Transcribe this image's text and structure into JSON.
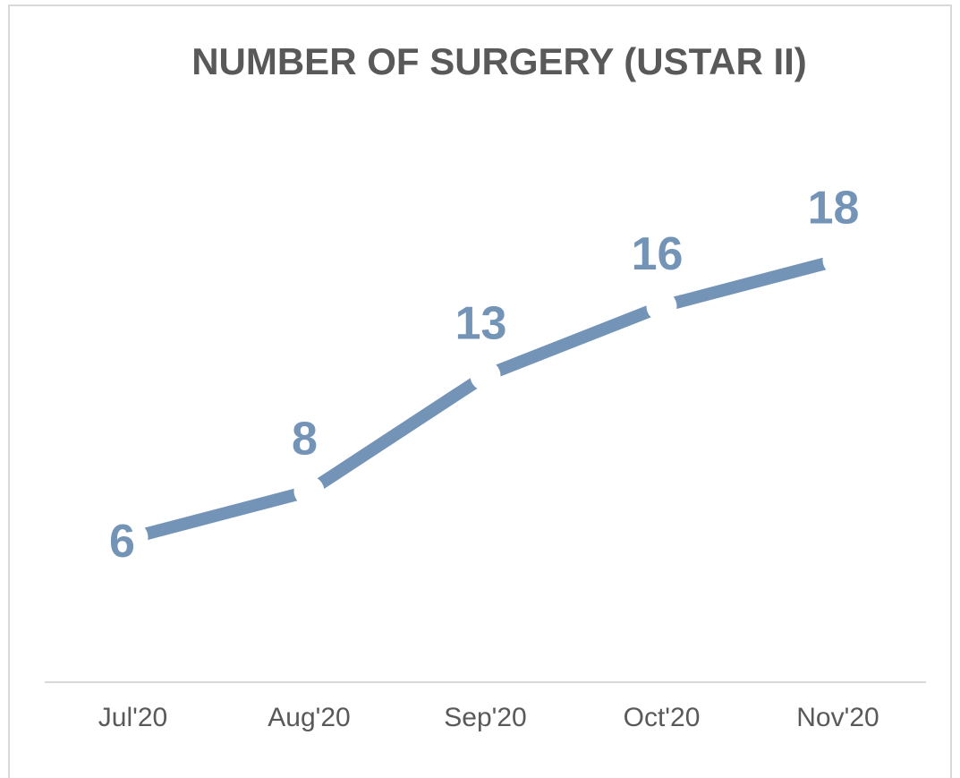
{
  "chart_data": {
    "type": "line",
    "title": "NUMBER OF SURGERY (USTAR II)",
    "categories": [
      "Jul'20",
      "Aug'20",
      "Sep'20",
      "Oct'20",
      "Nov'20"
    ],
    "series": [
      {
        "name": "Number of surgery",
        "color": "#7393b7",
        "values": [
          6,
          8,
          13,
          16,
          18
        ]
      }
    ]
  }
}
